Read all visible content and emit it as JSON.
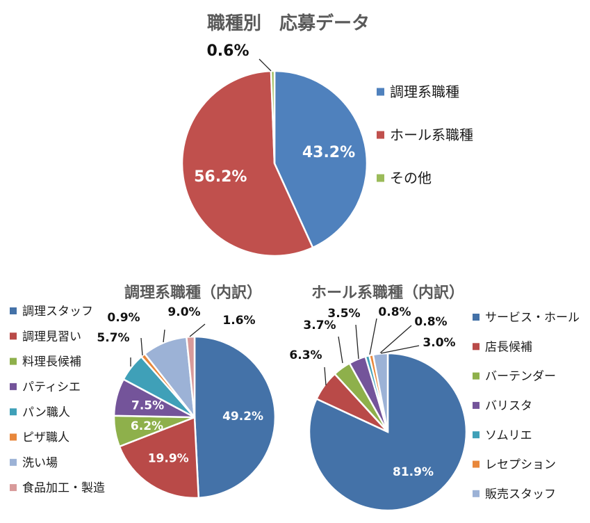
{
  "chart_data": [
    {
      "type": "pie",
      "title": "職種別　応募データ",
      "categories": [
        "調理系職種",
        "ホール系職種",
        "その他"
      ],
      "values": [
        43.2,
        56.2,
        0.6
      ],
      "labels": [
        "43.2%",
        "56.2%",
        "0.6%"
      ],
      "colors": [
        "#4F81BD",
        "#C0504D",
        "#9BBB59"
      ],
      "legend": "right"
    },
    {
      "type": "pie",
      "title": "調理系職種（内訳）",
      "categories": [
        "調理スタッフ",
        "調理見習い",
        "料理長候補",
        "パティシエ",
        "パン職人",
        "ピザ職人",
        "洗い場",
        "食品加工・製造"
      ],
      "values": [
        49.2,
        19.9,
        6.2,
        7.5,
        5.7,
        0.9,
        9.0,
        1.6
      ],
      "labels": [
        "49.2%",
        "19.9%",
        "6.2%",
        "7.5%",
        "5.7%",
        "0.9%",
        "9.0%",
        "1.6%"
      ],
      "colors": [
        "#4472A8",
        "#B94A48",
        "#8EB04B",
        "#74549A",
        "#3FA0B8",
        "#E8873B",
        "#9CB2D6",
        "#D89A9A"
      ],
      "legend": "left"
    },
    {
      "type": "pie",
      "title": "ホール系職種（内訳）",
      "categories": [
        "サービス・ホール",
        "店長候補",
        "バーテンダー",
        "バリスタ",
        "ソムリエ",
        "レセプション",
        "販売スタッフ"
      ],
      "values": [
        81.9,
        6.3,
        3.7,
        3.5,
        0.8,
        0.8,
        3.0
      ],
      "labels": [
        "81.9%",
        "6.3%",
        "3.7%",
        "3.5%",
        "0.8%",
        "0.8%",
        "3.0%"
      ],
      "colors": [
        "#4472A8",
        "#B94A48",
        "#8EB04B",
        "#74549A",
        "#3FA0B8",
        "#E8873B",
        "#9CB2D6"
      ],
      "legend": "right"
    }
  ]
}
